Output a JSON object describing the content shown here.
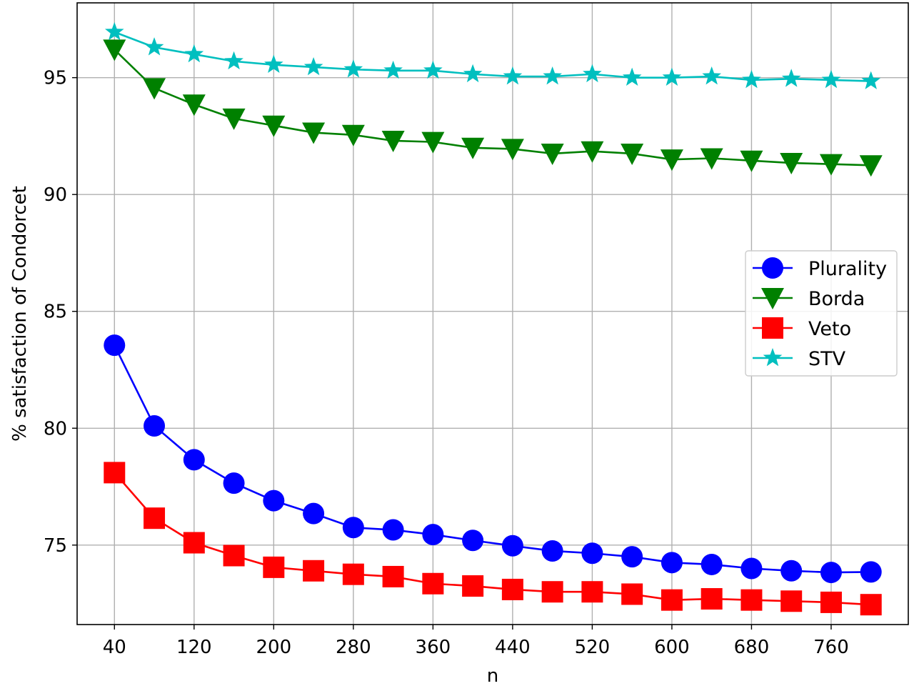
{
  "chart_data": {
    "type": "line",
    "title": "",
    "xlabel": "n",
    "ylabel": "% satisfaction of Condorcet",
    "x": [
      40,
      80,
      120,
      160,
      200,
      240,
      280,
      320,
      360,
      400,
      440,
      480,
      520,
      560,
      600,
      640,
      680,
      720,
      760,
      800
    ],
    "xticks": [
      40,
      120,
      200,
      280,
      360,
      440,
      520,
      600,
      680,
      760
    ],
    "xtick_labels": [
      "40",
      "120",
      "200",
      "280",
      "360",
      "440",
      "520",
      "600",
      "680",
      "760"
    ],
    "yticks": [
      75,
      80,
      85,
      90,
      95
    ],
    "ytick_labels": [
      "75",
      "80",
      "85",
      "90",
      "95"
    ],
    "xlim": [
      2.5,
      837.5
    ],
    "ylim": [
      71.6,
      98.2
    ],
    "grid": true,
    "legend_position": "center-right",
    "series": [
      {
        "name": "Plurality",
        "color": "#0000ff",
        "marker": "circle",
        "values": [
          83.55,
          80.1,
          78.65,
          77.65,
          76.9,
          76.35,
          75.75,
          75.65,
          75.45,
          75.2,
          74.97,
          74.75,
          74.65,
          74.5,
          74.25,
          74.17,
          74.0,
          73.9,
          73.83,
          73.85
        ]
      },
      {
        "name": "Borda",
        "color": "#008000",
        "marker": "triangle-down",
        "values": [
          96.2,
          94.55,
          93.85,
          93.25,
          92.95,
          92.65,
          92.55,
          92.3,
          92.25,
          92.0,
          91.95,
          91.75,
          91.85,
          91.75,
          91.5,
          91.55,
          91.45,
          91.35,
          91.3,
          91.25
        ]
      },
      {
        "name": "Veto",
        "color": "#ff0000",
        "marker": "square",
        "values": [
          78.1,
          76.15,
          75.1,
          74.55,
          74.05,
          73.9,
          73.75,
          73.65,
          73.35,
          73.25,
          73.1,
          73.0,
          73.0,
          72.9,
          72.65,
          72.7,
          72.65,
          72.6,
          72.55,
          72.45
        ]
      },
      {
        "name": "STV",
        "color": "#00bfbf",
        "marker": "star",
        "values": [
          96.95,
          96.3,
          96.0,
          95.7,
          95.55,
          95.45,
          95.35,
          95.3,
          95.3,
          95.15,
          95.05,
          95.05,
          95.15,
          95.0,
          95.0,
          95.05,
          94.9,
          94.95,
          94.9,
          94.85
        ]
      }
    ]
  }
}
